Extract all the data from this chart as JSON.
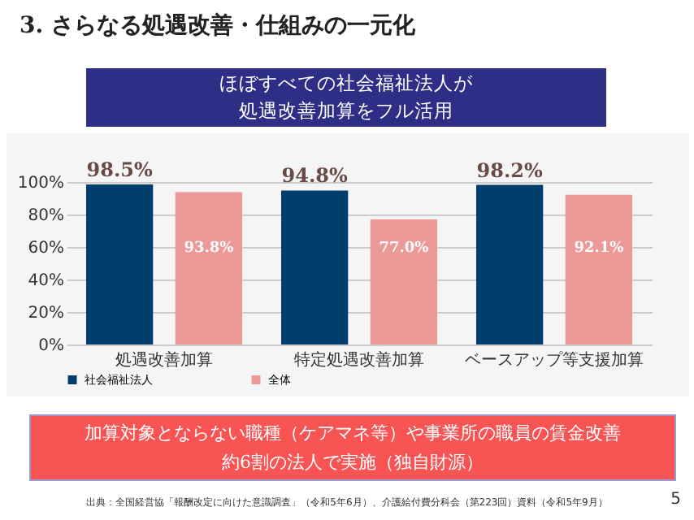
{
  "chart_data": {
    "type": "bar",
    "title": "3. さらなる処遇改善・仕組みの一元化",
    "subtitle": "ほぼすべての社会福祉法人が処遇改善加算をフル活用",
    "categories": [
      "処遇改善加算",
      "特定処遇改善加算",
      "ベースアップ等支援加算"
    ],
    "series": [
      {
        "name": "社会福祉法人",
        "color": "#003f6b",
        "values": [
          98.5,
          94.8,
          98.2
        ],
        "value_labels": [
          "98.5%",
          "94.8%",
          "98.2%"
        ]
      },
      {
        "name": "全体",
        "color": "#ec9a97",
        "values": [
          93.8,
          77.0,
          92.1
        ],
        "value_labels": [
          "93.8%",
          "77.0%",
          "92.1%"
        ]
      }
    ],
    "ylim": [
      0,
      100
    ],
    "yticks": [
      {
        "value": 0,
        "label": "0%"
      },
      {
        "value": 20,
        "label": "20%"
      },
      {
        "value": 40,
        "label": "40%"
      },
      {
        "value": 60,
        "label": "60%"
      },
      {
        "value": 80,
        "label": "80%"
      },
      {
        "value": 100,
        "label": "100%"
      }
    ],
    "grid": "y",
    "legend": "bottom",
    "annotations": [
      "加算対象とならない職種（ケアマネ等）や事業所の職員の賃金改善",
      "約6割の法人で実施（独自財源）",
      "出典：全国経営協「報酬改定に向けた意識調査」（令和5年6月）、介護給付費分科会（第223回）資料（令和5年9月）",
      "5"
    ]
  }
}
